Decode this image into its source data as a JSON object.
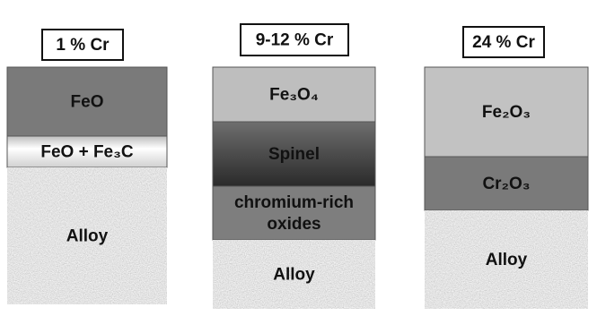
{
  "panels": [
    {
      "label": "1 % Cr",
      "layers": [
        {
          "lines": [
            "FeO"
          ]
        },
        {
          "lines": [
            "FeO + Fe₃C"
          ]
        },
        {
          "lines": [
            "Alloy"
          ]
        }
      ]
    },
    {
      "label": "9-12 % Cr",
      "layers": [
        {
          "lines": [
            "Fe₃O₄"
          ]
        },
        {
          "lines": [
            "Spinel"
          ]
        },
        {
          "lines": [
            "chromium-rich",
            "oxides"
          ]
        },
        {
          "lines": [
            "Alloy"
          ]
        }
      ]
    },
    {
      "label": "24 % Cr",
      "layers": [
        {
          "lines": [
            "Fe₂O₃"
          ]
        },
        {
          "lines": [
            "Cr₂O₃"
          ]
        },
        {
          "lines": [
            "Alloy"
          ]
        }
      ]
    }
  ]
}
